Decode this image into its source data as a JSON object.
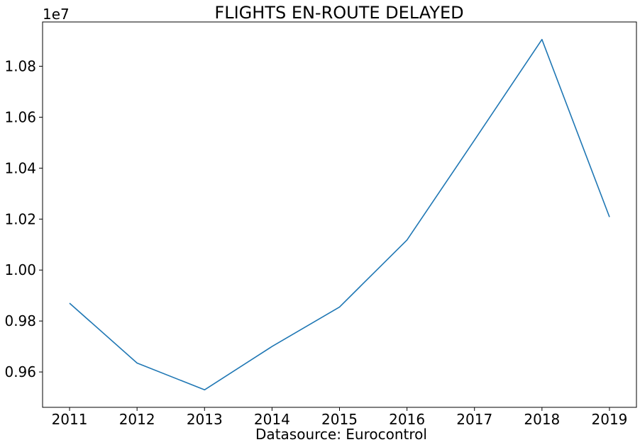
{
  "chart_data": {
    "type": "line",
    "title": "FLIGHTS EN-ROUTE DELAYED",
    "xlabel": "Datasource: Eurocontrol",
    "ylabel": "",
    "y_offset_label": "1e7",
    "x": [
      2011,
      2012,
      2013,
      2014,
      2015,
      2016,
      2017,
      2018,
      2019
    ],
    "x_tick_labels": [
      "2011",
      "2012",
      "2013",
      "2014",
      "2015",
      "2016",
      "2017",
      "2018",
      "2019"
    ],
    "series": [
      {
        "values": [
          9870000,
          9635000,
          9530000,
          9700000,
          9855000,
          10118000,
          10510000,
          10905000,
          10208000
        ],
        "color": "#1f77b4"
      }
    ],
    "y_ticks": [
      9600000,
      9800000,
      10000000,
      10200000,
      10400000,
      10600000,
      10800000
    ],
    "y_tick_labels": [
      "0.96",
      "0.98",
      "1.00",
      "1.02",
      "1.04",
      "1.06",
      "1.08"
    ],
    "xlim": [
      2010.6,
      2019.4
    ],
    "ylim": [
      9461200,
      10973800
    ],
    "grid": false,
    "legend": "none"
  }
}
